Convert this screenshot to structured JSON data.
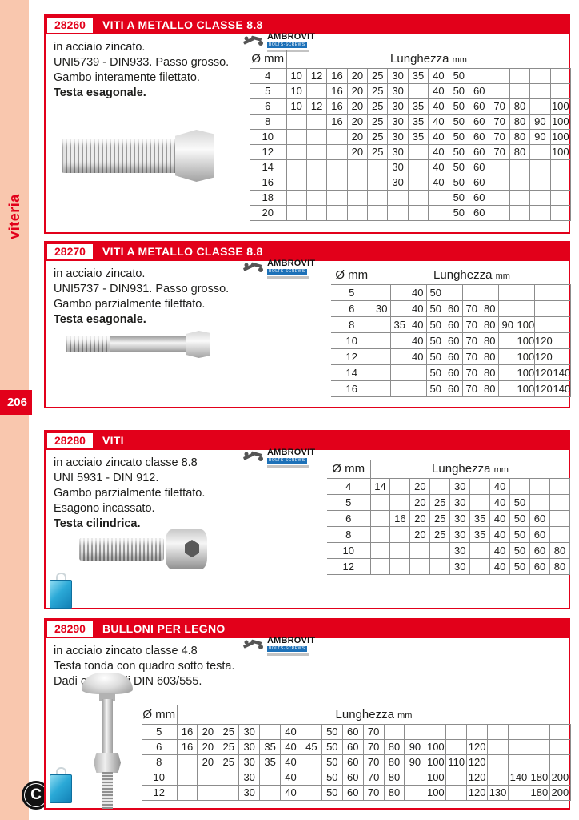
{
  "sidebar": {
    "category": "viteria",
    "page_number": "206",
    "logo_letter": "C"
  },
  "brand": {
    "name": "AMBROVIT",
    "sub": "BOLTS·SCREWS"
  },
  "sections": [
    {
      "code": "28260",
      "title": "VITI A METALLO CLASSE 8.8",
      "description": [
        "in acciaio zincato.",
        "UNI5739 - DIN933. Passo grosso.",
        "Gambo interamente filettato."
      ],
      "description_bold": "Testa esagonale.",
      "table": {
        "diam_header": "Ø mm",
        "length_header": "Lunghezza",
        "length_unit": "mm",
        "rows": [
          {
            "d": "4",
            "c": [
              "10",
              "12",
              "16",
              "20",
              "25",
              "30",
              "35",
              "40",
              "50",
              "",
              "",
              "",
              "",
              ""
            ]
          },
          {
            "d": "5",
            "c": [
              "10",
              "",
              "16",
              "20",
              "25",
              "30",
              "",
              "40",
              "50",
              "60",
              "",
              "",
              "",
              ""
            ]
          },
          {
            "d": "6",
            "c": [
              "10",
              "12",
              "16",
              "20",
              "25",
              "30",
              "35",
              "40",
              "50",
              "60",
              "70",
              "80",
              "",
              "100"
            ]
          },
          {
            "d": "8",
            "c": [
              "",
              "",
              "16",
              "20",
              "25",
              "30",
              "35",
              "40",
              "50",
              "60",
              "70",
              "80",
              "90",
              "100"
            ]
          },
          {
            "d": "10",
            "c": [
              "",
              "",
              "",
              "20",
              "25",
              "30",
              "35",
              "40",
              "50",
              "60",
              "70",
              "80",
              "90",
              "100"
            ]
          },
          {
            "d": "12",
            "c": [
              "",
              "",
              "",
              "20",
              "25",
              "30",
              "",
              "40",
              "50",
              "60",
              "70",
              "80",
              "",
              "100"
            ]
          },
          {
            "d": "14",
            "c": [
              "",
              "",
              "",
              "",
              "",
              "30",
              "",
              "40",
              "50",
              "60",
              "",
              "",
              "",
              ""
            ]
          },
          {
            "d": "16",
            "c": [
              "",
              "",
              "",
              "",
              "",
              "30",
              "",
              "40",
              "50",
              "60",
              "",
              "",
              "",
              ""
            ]
          },
          {
            "d": "18",
            "c": [
              "",
              "",
              "",
              "",
              "",
              "",
              "",
              "",
              "50",
              "60",
              "",
              "",
              "",
              ""
            ]
          },
          {
            "d": "20",
            "c": [
              "",
              "",
              "",
              "",
              "",
              "",
              "",
              "",
              "50",
              "60",
              "",
              "",
              "",
              ""
            ]
          }
        ]
      }
    },
    {
      "code": "28270",
      "title": "VITI A METALLO CLASSE 8.8",
      "description": [
        "in acciaio zincato.",
        "UNI5737 - DIN931. Passo grosso.",
        "Gambo parzialmente filettato."
      ],
      "description_bold": "Testa esagonale.",
      "table": {
        "diam_header": "Ø mm",
        "length_header": "Lunghezza",
        "length_unit": "mm",
        "rows": [
          {
            "d": "5",
            "c": [
              "",
              "",
              "40",
              "50",
              "",
              "",
              "",
              "",
              "",
              "",
              ""
            ]
          },
          {
            "d": "6",
            "c": [
              "30",
              "",
              "40",
              "50",
              "60",
              "70",
              "80",
              "",
              "",
              "",
              ""
            ]
          },
          {
            "d": "8",
            "c": [
              "",
              "35",
              "40",
              "50",
              "60",
              "70",
              "80",
              "90",
              "100",
              "",
              ""
            ]
          },
          {
            "d": "10",
            "c": [
              "",
              "",
              "40",
              "50",
              "60",
              "70",
              "80",
              "",
              "100",
              "120",
              ""
            ]
          },
          {
            "d": "12",
            "c": [
              "",
              "",
              "40",
              "50",
              "60",
              "70",
              "80",
              "",
              "100",
              "120",
              ""
            ]
          },
          {
            "d": "14",
            "c": [
              "",
              "",
              "",
              "50",
              "60",
              "70",
              "80",
              "",
              "100",
              "120",
              "140"
            ]
          },
          {
            "d": "16",
            "c": [
              "",
              "",
              "",
              "50",
              "60",
              "70",
              "80",
              "",
              "100",
              "120",
              "140"
            ]
          }
        ]
      }
    },
    {
      "code": "28280",
      "title": "VITI",
      "description": [
        "in acciaio zincato classe 8.8",
        "UNI 5931 - DIN 912.",
        "Gambo parzialmente filettato.",
        "Esagono incassato."
      ],
      "description_bold": "Testa cilindrica.",
      "table": {
        "diam_header": "Ø mm",
        "length_header": "Lunghezza",
        "length_unit": "mm",
        "rows": [
          {
            "d": "4",
            "c": [
              "14",
              "",
              "20",
              "",
              "30",
              "",
              "40",
              "",
              "",
              ""
            ]
          },
          {
            "d": "5",
            "c": [
              "",
              "",
              "20",
              "25",
              "30",
              "",
              "40",
              "50",
              "",
              ""
            ]
          },
          {
            "d": "6",
            "c": [
              "",
              "16",
              "20",
              "25",
              "30",
              "35",
              "40",
              "50",
              "60",
              ""
            ]
          },
          {
            "d": "8",
            "c": [
              "",
              "",
              "20",
              "25",
              "30",
              "35",
              "40",
              "50",
              "60",
              ""
            ]
          },
          {
            "d": "10",
            "c": [
              "",
              "",
              "",
              "",
              "30",
              "",
              "40",
              "50",
              "60",
              "80"
            ]
          },
          {
            "d": "12",
            "c": [
              "",
              "",
              "",
              "",
              "30",
              "",
              "40",
              "50",
              "60",
              "80"
            ]
          }
        ]
      }
    },
    {
      "code": "28290",
      "title": "BULLONI PER LEGNO",
      "description": [
        "in acciaio zincato classe 4.8",
        "Testa tonda con quadro sotto testa.",
        "Dadi esagonali DIN 603/555."
      ],
      "table": {
        "diam_header": "Ø mm",
        "length_header": "Lunghezza",
        "length_unit": "mm",
        "rows": [
          {
            "d": "5",
            "c": [
              "16",
              "20",
              "25",
              "30",
              "",
              "40",
              "",
              "50",
              "60",
              "70",
              "",
              "",
              "",
              "",
              "",
              "",
              "",
              "",
              ""
            ]
          },
          {
            "d": "6",
            "c": [
              "16",
              "20",
              "25",
              "30",
              "35",
              "40",
              "45",
              "50",
              "60",
              "70",
              "80",
              "90",
              "100",
              "",
              "120",
              "",
              "",
              "",
              ""
            ]
          },
          {
            "d": "8",
            "c": [
              "",
              "20",
              "25",
              "30",
              "35",
              "40",
              "",
              "50",
              "60",
              "70",
              "80",
              "90",
              "100",
              "110",
              "120",
              "",
              "",
              "",
              ""
            ]
          },
          {
            "d": "10",
            "c": [
              "",
              "",
              "",
              "30",
              "",
              "40",
              "",
              "50",
              "60",
              "70",
              "80",
              "",
              "100",
              "",
              "120",
              "",
              "140",
              "180",
              "200"
            ]
          },
          {
            "d": "12",
            "c": [
              "",
              "",
              "",
              "30",
              "",
              "40",
              "",
              "50",
              "60",
              "70",
              "80",
              "",
              "100",
              "",
              "120",
              "130",
              "",
              "180",
              "200"
            ]
          }
        ]
      }
    }
  ]
}
